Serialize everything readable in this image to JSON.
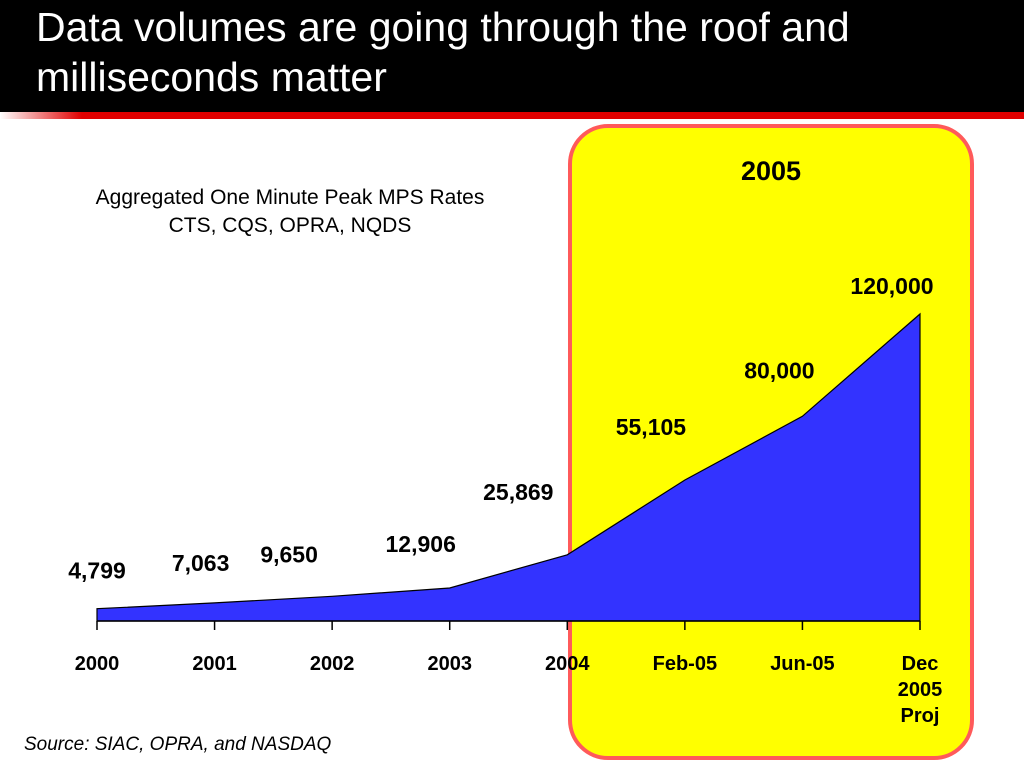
{
  "slide": {
    "title": "Data volumes are going through the roof and milliseconds matter",
    "highlight_label": "2005",
    "source": "Source: SIAC, OPRA, and NASDAQ"
  },
  "colors": {
    "area_fill": "#3333ff",
    "highlight": "#ffff00",
    "highlight_border": "#ff5a5a",
    "title_bar": "#000000",
    "rule": "#e00000"
  },
  "chart_data": {
    "type": "area",
    "title": "Aggregated One Minute Peak MPS Rates",
    "subtitle": "CTS, CQS, OPRA, NQDS",
    "categories": [
      "2000",
      "2001",
      "2002",
      "2003",
      "2004",
      "Feb-05",
      "Jun-05",
      "Dec 2005 Proj"
    ],
    "tick_lines": [
      [
        "2000"
      ],
      [
        "2001"
      ],
      [
        "2002"
      ],
      [
        "2003"
      ],
      [
        "2004"
      ],
      [
        "Feb-05"
      ],
      [
        "Jun-05"
      ],
      [
        "Dec",
        "2005",
        "Proj"
      ]
    ],
    "values": [
      4799,
      7063,
      9650,
      12906,
      25869,
      55105,
      80000,
      120000
    ],
    "value_labels": [
      "4,799",
      "7,063",
      "9,650",
      "12,906",
      "25,869",
      "55,105",
      "80,000",
      "120,000"
    ],
    "ylim": [
      0,
      120000
    ],
    "grid": false,
    "legend": "none"
  }
}
